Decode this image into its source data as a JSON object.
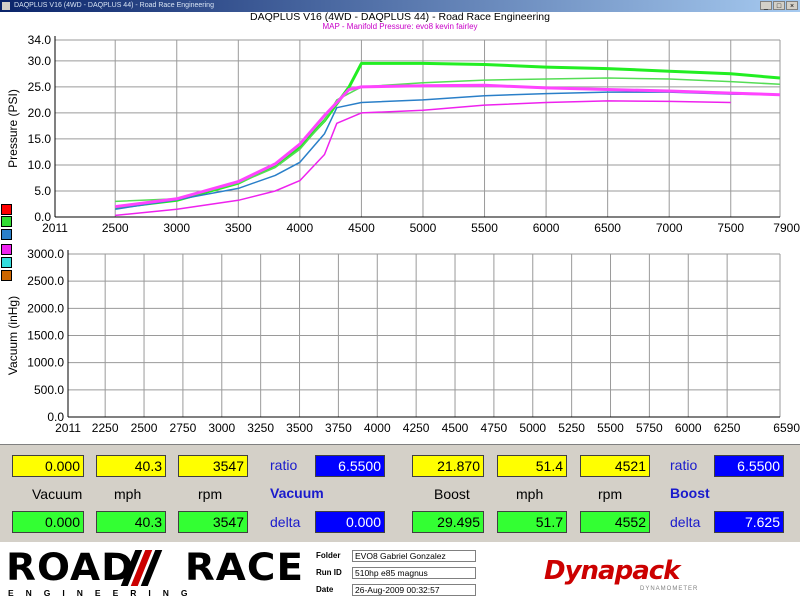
{
  "window": {
    "title": "DAQPLUS V16 (4WD - DAQPLUS 44) - Road Race Engineering",
    "minimize": "_",
    "maximize": "□",
    "close": "×"
  },
  "header": {
    "title": "DAQPLUS V16 (4WD - DAQPLUS 44) - Road Race Engineering",
    "subtitle": "MAP - Manifold Pressure: evo8 kevin fairley"
  },
  "colors": {
    "red": "#ff0000",
    "green": "#33dd33",
    "blue": "#2a7fc8",
    "magenta": "#ee22ee",
    "cyan": "#33dddd",
    "brown": "#cc6600"
  },
  "swatches": [
    "red",
    "green",
    "blue",
    "magenta",
    "cyan",
    "brown"
  ],
  "chart_data": [
    {
      "type": "line",
      "ylabel": "Pressure (PSI)",
      "ylim": [
        0,
        34
      ],
      "xlim": [
        2011,
        7900
      ],
      "yticks": [
        "0.0",
        "5.0",
        "10.0",
        "15.0",
        "20.0",
        "25.0",
        "30.0",
        "34.0"
      ],
      "xticks": [
        "2011",
        "2500",
        "3000",
        "3500",
        "4000",
        "4500",
        "5000",
        "5500",
        "6000",
        "6500",
        "7000",
        "7500",
        "7900"
      ],
      "grid": true,
      "series": [
        {
          "color": "#22ee22",
          "width": 3,
          "x": [
            2500,
            3000,
            3500,
            3800,
            4000,
            4200,
            4400,
            4500,
            5000,
            5500,
            6000,
            6500,
            7000,
            7500,
            7900
          ],
          "y": [
            1.8,
            3.2,
            6.5,
            10,
            13.5,
            18.5,
            25,
            29.5,
            29.5,
            29.3,
            28.8,
            28.5,
            28,
            27.5,
            26.7
          ]
        },
        {
          "color": "#55dd55",
          "width": 1.5,
          "x": [
            2500,
            3000,
            3500,
            3800,
            4000,
            4200,
            4300,
            4500,
            5000,
            5500,
            6000,
            6500,
            7000,
            7500,
            7900
          ],
          "y": [
            3,
            3.5,
            6.5,
            9.5,
            13,
            18.5,
            22.5,
            25,
            25.8,
            26.3,
            26.5,
            26.7,
            26.5,
            26,
            25.5
          ]
        },
        {
          "color": "#2a7fc8",
          "width": 1.5,
          "x": [
            2500,
            3000,
            3500,
            3800,
            4000,
            4200,
            4300,
            4500,
            5000,
            5500,
            6000,
            6500,
            7000,
            7500,
            7900
          ],
          "y": [
            1.5,
            3.3,
            5.5,
            8,
            10.5,
            16,
            21,
            22,
            22.5,
            23.3,
            23.7,
            24,
            24,
            23.6,
            23.5
          ]
        },
        {
          "color": "#ee22ee",
          "width": 1.5,
          "x": [
            2500,
            3000,
            3500,
            3800,
            4000,
            4200,
            4300,
            4500,
            5000,
            5500,
            6000,
            6500,
            7000,
            7500
          ],
          "y": [
            0.3,
            1.5,
            3.2,
            5,
            7,
            12,
            18,
            20,
            20.5,
            21.5,
            22,
            22.3,
            22.2,
            22
          ]
        },
        {
          "color": "#ff44ff",
          "width": 3,
          "x": [
            2500,
            3000,
            3500,
            3800,
            4000,
            4200,
            4400,
            4500,
            5000,
            5500,
            6000,
            6500,
            7000,
            7500,
            7900
          ],
          "y": [
            2,
            3.5,
            6.8,
            10.2,
            14,
            19.5,
            24.5,
            25,
            25.2,
            25.3,
            24.8,
            24.5,
            24.2,
            23.8,
            23.5
          ]
        }
      ]
    },
    {
      "type": "line",
      "ylabel": "Vacuum (inHg)",
      "ylim": [
        0,
        3000
      ],
      "xlim": [
        2011,
        6590
      ],
      "yticks": [
        "0.0",
        "500.0",
        "1000.0",
        "1500.0",
        "2000.0",
        "2500.0",
        "3000.0"
      ],
      "xticks": [
        "2011",
        "2250",
        "2500",
        "2750",
        "3000",
        "3250",
        "3500",
        "3750",
        "4000",
        "4250",
        "4500",
        "4750",
        "5000",
        "5250",
        "5500",
        "5750",
        "6000",
        "6250",
        "6590"
      ],
      "grid": true,
      "series": []
    }
  ],
  "readout": {
    "left": {
      "vacuum": "0.000",
      "mph": "40.3",
      "rpm": "3547",
      "ratio_label": "ratio",
      "ratio": "6.5500",
      "vacuum_label": "Vacuum",
      "mph_label": "mph",
      "rpm_label": "rpm",
      "section": "Vacuum",
      "vacuum2": "0.000",
      "mph2": "40.3",
      "rpm2": "3547",
      "delta_label": "delta",
      "delta": "0.000"
    },
    "right": {
      "boost": "21.870",
      "mph": "51.4",
      "rpm": "4521",
      "ratio_label": "ratio",
      "ratio": "6.5500",
      "boost_label": "Boost",
      "mph_label": "mph",
      "rpm_label": "rpm",
      "section": "Boost",
      "boost2": "29.495",
      "mph2": "51.7",
      "rpm2": "4552",
      "delta_label": "delta",
      "delta": "7.625"
    }
  },
  "footer": {
    "logo_main": "ROAD",
    "logo_main2": "RACE",
    "logo_sub": "ENGINEERING",
    "folder_label": "Folder",
    "folder": "EVO8 Gabriel Gonzalez",
    "runid_label": "Run ID",
    "runid": "510hp e85 magnus",
    "date_label": "Date",
    "date": "26-Aug-2009  00:32:57",
    "brand": "Dynapack",
    "brand_sub": "DYNAMOMETER"
  }
}
